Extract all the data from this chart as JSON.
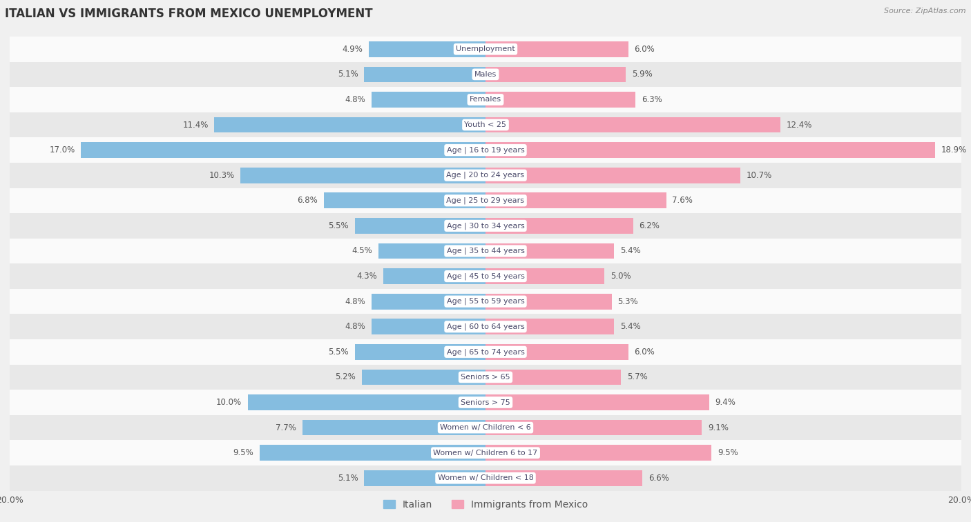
{
  "title": "ITALIAN VS IMMIGRANTS FROM MEXICO UNEMPLOYMENT",
  "source": "Source: ZipAtlas.com",
  "categories": [
    "Unemployment",
    "Males",
    "Females",
    "Youth < 25",
    "Age | 16 to 19 years",
    "Age | 20 to 24 years",
    "Age | 25 to 29 years",
    "Age | 30 to 34 years",
    "Age | 35 to 44 years",
    "Age | 45 to 54 years",
    "Age | 55 to 59 years",
    "Age | 60 to 64 years",
    "Age | 65 to 74 years",
    "Seniors > 65",
    "Seniors > 75",
    "Women w/ Children < 6",
    "Women w/ Children 6 to 17",
    "Women w/ Children < 18"
  ],
  "italian": [
    4.9,
    5.1,
    4.8,
    11.4,
    17.0,
    10.3,
    6.8,
    5.5,
    4.5,
    4.3,
    4.8,
    4.8,
    5.5,
    5.2,
    10.0,
    7.7,
    9.5,
    5.1
  ],
  "mexico": [
    6.0,
    5.9,
    6.3,
    12.4,
    18.9,
    10.7,
    7.6,
    6.2,
    5.4,
    5.0,
    5.3,
    5.4,
    6.0,
    5.7,
    9.4,
    9.1,
    9.5,
    6.6
  ],
  "italian_color": "#85bde0",
  "mexico_color": "#f4a0b5",
  "bar_height": 0.62,
  "xlim": 20.0,
  "label_italian": "Italian",
  "label_mexico": "Immigrants from Mexico",
  "background_color": "#f0f0f0",
  "row_color_light": "#fafafa",
  "row_color_dark": "#e8e8e8",
  "label_box_color": "#ffffff",
  "label_text_color": "#4a4a6a",
  "value_text_color": "#555555"
}
